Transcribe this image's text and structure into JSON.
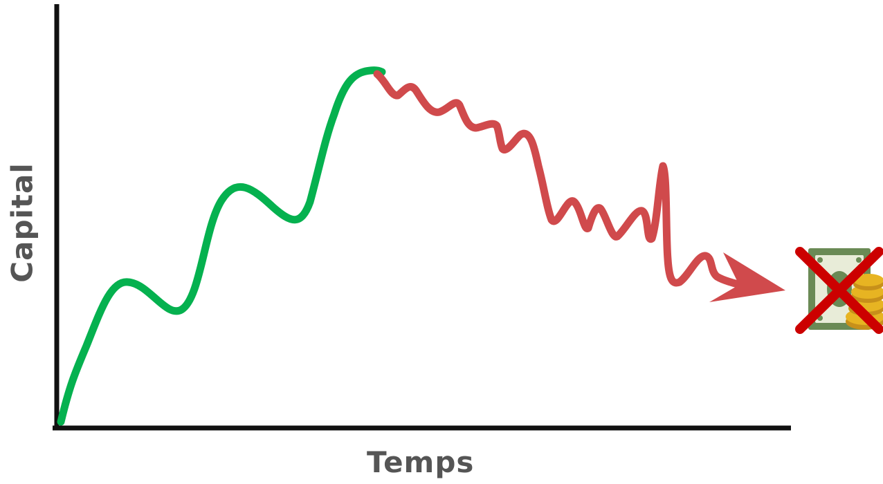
{
  "axes": {
    "x_label": "Temps",
    "y_label": "Capital"
  },
  "colors": {
    "axis": "#111111",
    "rise": "#05b14f",
    "fall": "#d04a4c",
    "label": "#555555",
    "bill": "#6a8a55",
    "bill_light": "#e8ecd8",
    "coin": "#e7b422",
    "coin_dark": "#c7901a",
    "cross": "#cc0000"
  },
  "icons": {
    "money": "money-icon",
    "cross": "cross-icon",
    "arrow": "arrow-head-icon"
  }
}
